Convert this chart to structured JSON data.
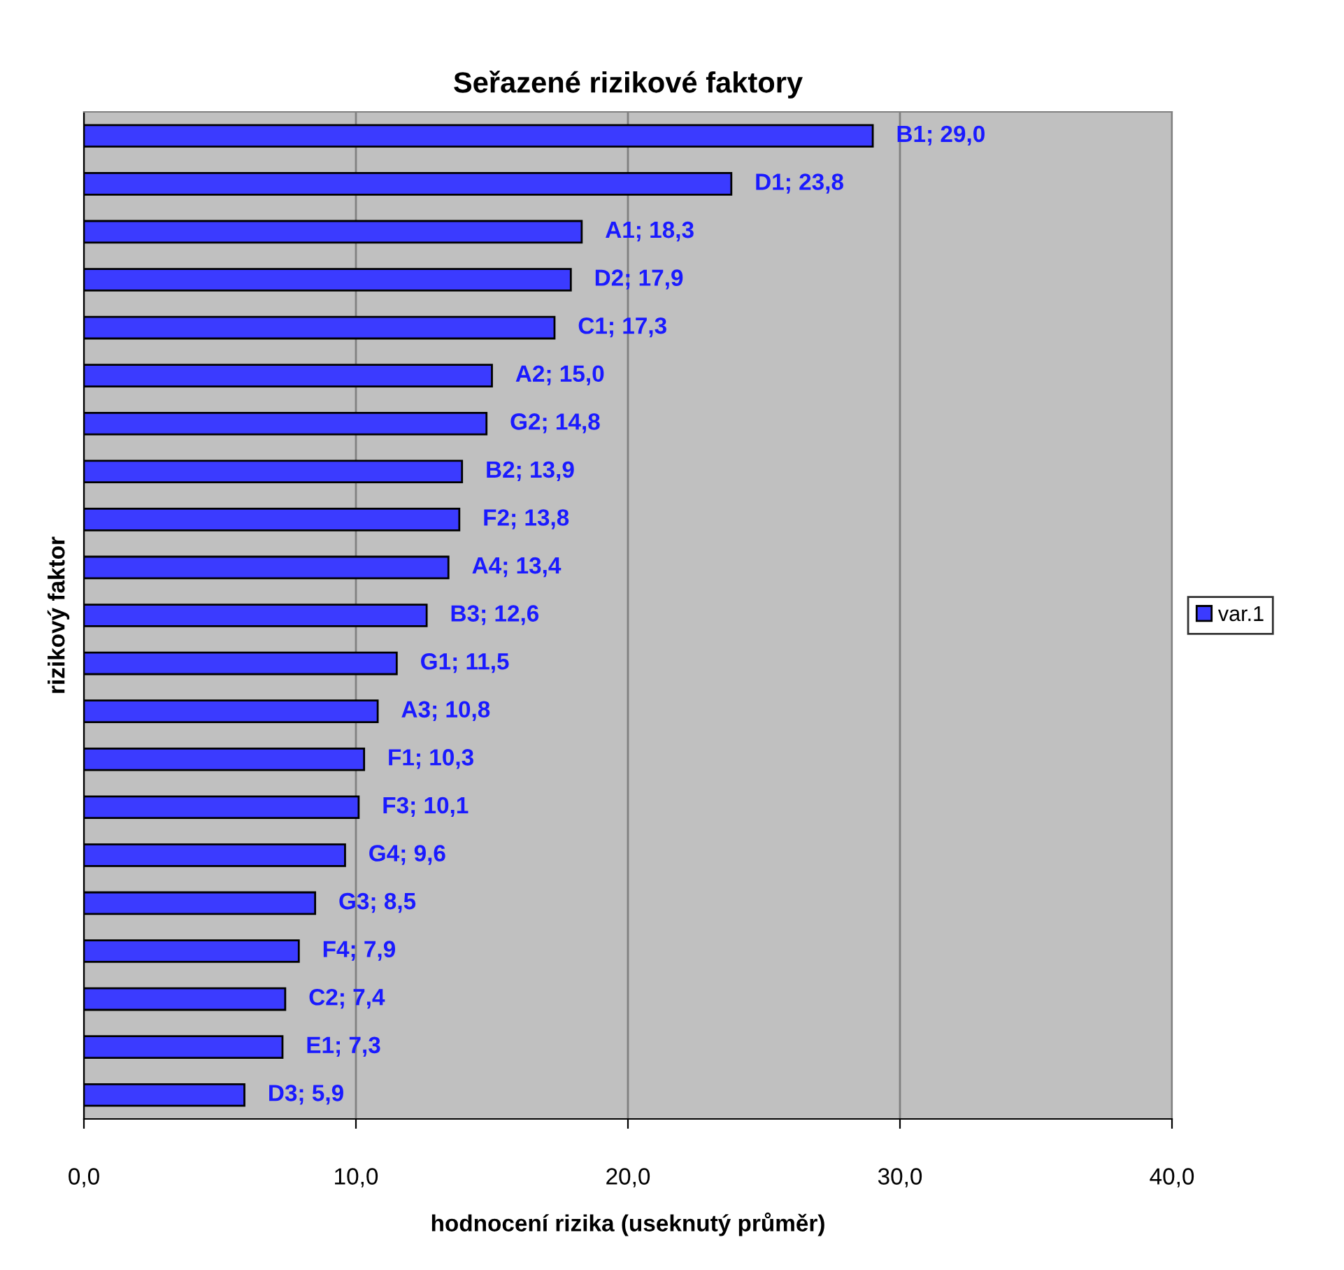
{
  "chart_data": {
    "type": "bar",
    "orientation": "horizontal",
    "title": "Seřazené rizikové faktory",
    "xlabel": "hodnocení rizika (useknutý průměr)",
    "ylabel": "rizikový faktor",
    "categories": [
      null,
      null,
      null,
      null,
      null,
      null,
      null,
      null,
      null,
      null,
      null,
      null,
      null,
      null,
      null,
      null,
      null,
      null,
      null,
      null,
      null
    ],
    "series": [
      {
        "name": "var.1",
        "color": "#3b3bff",
        "values": [
          29.0,
          23.8,
          18.3,
          17.9,
          17.3,
          15.0,
          14.8,
          13.9,
          13.8,
          13.4,
          12.6,
          11.5,
          10.8,
          10.3,
          10.1,
          9.6,
          8.5,
          7.9,
          7.4,
          7.3,
          5.9
        ],
        "value_labels": [
          "B1; 29,0",
          "D1; 23,8",
          "A1; 18,3",
          "D2; 17,9",
          "C1; 17,3",
          "A2; 15,0",
          "G2; 14,8",
          "B2; 13,9",
          "F2; 13,8",
          "A4; 13,4",
          "B3; 12,6",
          "G1; 11,5",
          "A3; 10,8",
          "F1; 10,3",
          "F3; 10,1",
          "G4; 9,6",
          "G3; 8,5",
          "F4; 7,9",
          "C2; 7,4",
          "E1; 7,3",
          "D3; 5,9"
        ]
      }
    ],
    "xlim": [
      0,
      40
    ],
    "xticks": [
      {
        "value": 0,
        "label": "0,0"
      },
      {
        "value": 10,
        "label": "10,0"
      },
      {
        "value": 20,
        "label": "20,0"
      },
      {
        "value": 30,
        "label": "30,0"
      },
      {
        "value": 40,
        "label": "40,0"
      }
    ],
    "grid": "x",
    "legend": "right"
  }
}
